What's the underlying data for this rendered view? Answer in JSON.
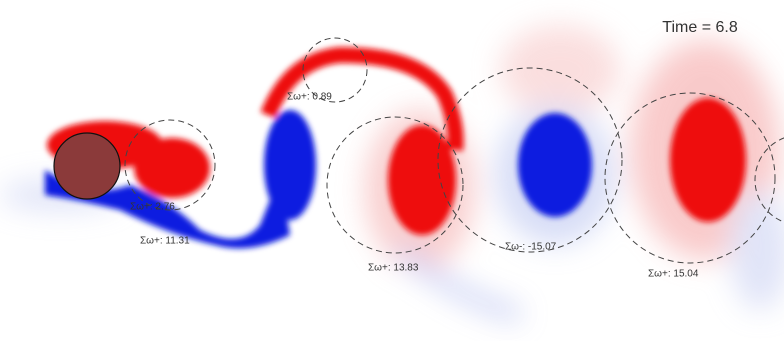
{
  "time_label": "Time = 6.8",
  "circulation_labels": [
    "Σω+: 0.89",
    "Σω+: 2.76",
    "Σω+: 11.31",
    "Σω+: 13.83",
    "Σω-: -15.07",
    "Σω+: 15.04"
  ]
}
